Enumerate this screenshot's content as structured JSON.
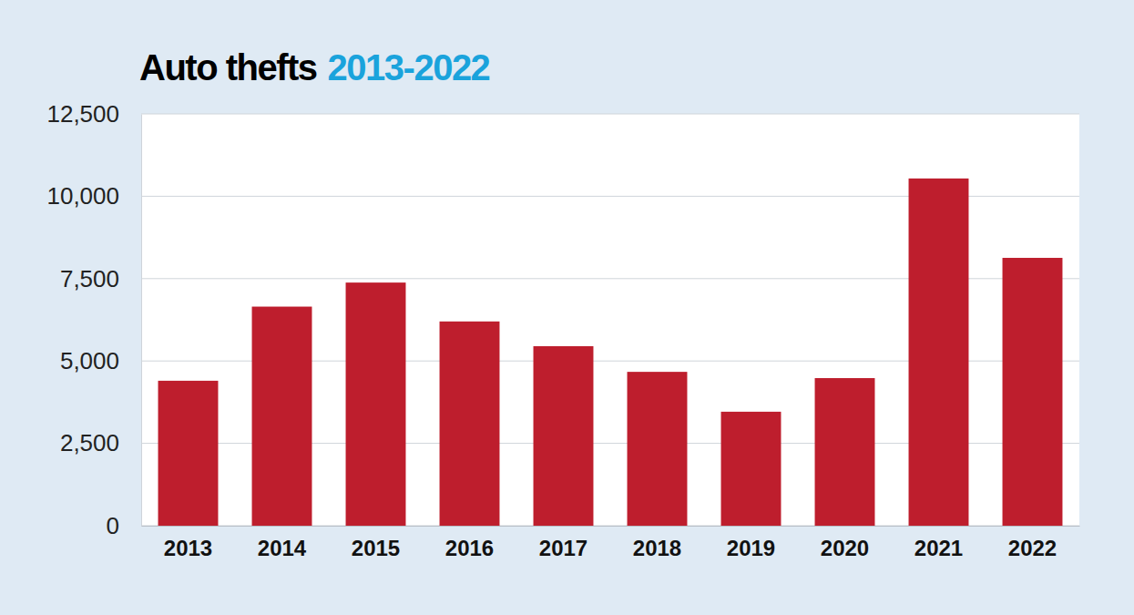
{
  "chart_data": {
    "type": "bar",
    "title": "Auto thefts",
    "subtitle": "2013-2022",
    "categories": [
      "2013",
      "2014",
      "2015",
      "2016",
      "2017",
      "2018",
      "2019",
      "2020",
      "2021",
      "2022"
    ],
    "values": [
      4400,
      6650,
      7380,
      6200,
      5450,
      4670,
      3460,
      4480,
      10540,
      8130
    ],
    "color": "#be1e2d",
    "ylim": [
      0,
      12500
    ],
    "yticks": [
      0,
      {
        "value": 2500,
        "label": "2,500"
      },
      {
        "value": 5000,
        "label": "5,000"
      },
      {
        "value": 7500,
        "label": "7,500"
      },
      {
        "value": 10000,
        "label": "10,000"
      },
      {
        "value": 12500,
        "label": "12,500"
      }
    ],
    "grid": true
  }
}
